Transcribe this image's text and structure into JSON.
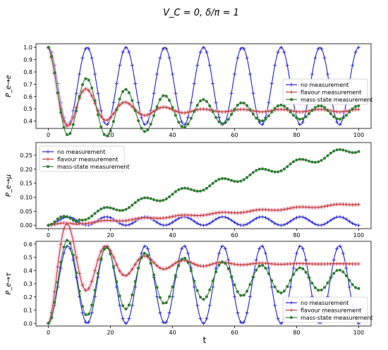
{
  "figure": {
    "title": "V_C = 0, δ/π = 1",
    "xlabel": "t"
  },
  "colors": {
    "no_measurement": "#1f1fd6",
    "flavour_measurement": "#c0392b",
    "mass_state_measurement": "#2e7d32",
    "shade": "#f4c2e6"
  },
  "chart_data": [
    {
      "type": "line",
      "ylabel": "P_e→e",
      "xlim": [
        -4,
        104
      ],
      "ylim": [
        0.34,
        1.03
      ],
      "x_ticks": [
        0,
        20,
        40,
        60,
        80,
        100
      ],
      "y_ticks": [
        0.4,
        0.5,
        0.6,
        0.7,
        0.8,
        0.9,
        1.0
      ],
      "legend_position": "center-right",
      "series": [
        {
          "name": "no measurement",
          "model": {
            "base": 0.685,
            "amp": 0.315,
            "amp_end": 0.315,
            "decay": 0.0,
            "phase": 0,
            "growth": 0
          }
        },
        {
          "name": "flavour measurement",
          "model": {
            "base": 0.58,
            "amp": 0.42,
            "amp_end": 0.01,
            "decay": 0.065,
            "phase": 0,
            "growth": -0.12
          }
        },
        {
          "name": "mass-state measurement",
          "model": {
            "base": 0.58,
            "amp": 0.42,
            "amp_end": 0.06,
            "decay": 0.022,
            "phase": 0,
            "growth": -0.12
          }
        }
      ]
    },
    {
      "type": "line",
      "ylabel": "P_e→μ",
      "xlim": [
        -4,
        104
      ],
      "ylim": [
        -0.012,
        0.295
      ],
      "x_ticks": [
        0,
        20,
        40,
        60,
        80,
        100
      ],
      "y_ticks": [
        0.0,
        0.05,
        0.1,
        0.15,
        0.2,
        0.25
      ],
      "legend_position": "top-left",
      "series": [
        {
          "name": "no measurement",
          "model": {
            "type": "sin2",
            "amp": 0.03,
            "period": 12.5
          }
        },
        {
          "name": "flavour measurement",
          "model": {
            "type": "ramp",
            "start": 0.0,
            "end": 0.077,
            "wiggle": 0.003
          }
        },
        {
          "name": "mass-state measurement",
          "model": {
            "type": "ramp",
            "start": 0.0,
            "end": 0.275,
            "wiggle": 0.013
          }
        }
      ]
    },
    {
      "type": "line",
      "ylabel": "P_e→τ",
      "xlim": [
        -4,
        104
      ],
      "ylim": [
        -0.02,
        0.62
      ],
      "x_ticks": [
        0,
        20,
        40,
        60,
        80,
        100
      ],
      "y_ticks": [
        0.0,
        0.1,
        0.2,
        0.3,
        0.4,
        0.5,
        0.6
      ],
      "legend_position": "bottom-right",
      "series": [
        {
          "name": "no measurement",
          "model": {
            "type": "sin2",
            "amp": 0.585,
            "period": 12.5
          }
        },
        {
          "name": "flavour measurement",
          "model": {
            "type": "damped",
            "base": 0.45,
            "amp": 0.45,
            "decay": 0.065
          }
        },
        {
          "name": "mass-state measurement",
          "model": {
            "type": "damped",
            "base": 0.33,
            "amp": 0.33,
            "decay": 0.016
          }
        }
      ]
    }
  ]
}
